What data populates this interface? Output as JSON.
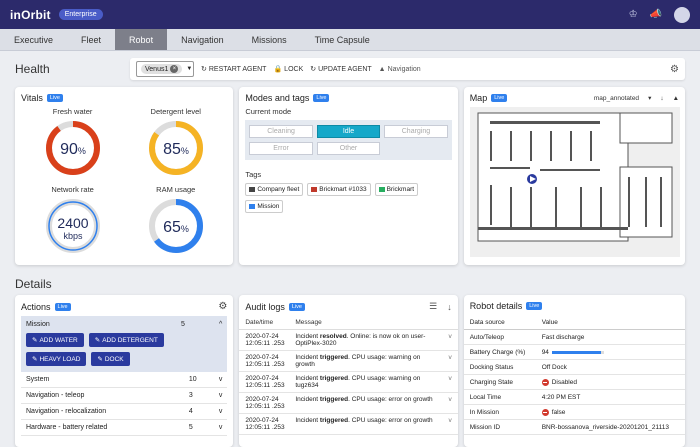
{
  "topbar": {
    "logo": "inOrbit",
    "badge": "Enterprise"
  },
  "tabs": [
    "Executive",
    "Fleet",
    "Robot",
    "Navigation",
    "Missions",
    "Time Capsule"
  ],
  "active_tab": "Robot",
  "health": {
    "title": "Health",
    "agent_chip": "Venus1",
    "restart": "RESTART AGENT",
    "lock": "LOCK",
    "update": "UPDATE AGENT",
    "navigation": "Navigation"
  },
  "live_label": "Live",
  "vitals": {
    "title": "Vitals",
    "gauges": [
      {
        "label": "Fresh water",
        "value": "90",
        "unit": "%",
        "fraction": 0.9,
        "color": "#d9401a"
      },
      {
        "label": "Detergent level",
        "value": "85",
        "unit": "%",
        "fraction": 0.85,
        "color": "#f5b324"
      },
      {
        "label": "Network rate",
        "value": "2400",
        "unit": "kbps",
        "fraction": 1.0,
        "color": "#2f80ed"
      },
      {
        "label": "RAM usage",
        "value": "65",
        "unit": "%",
        "fraction": 0.65,
        "color": "#2f80ed"
      }
    ]
  },
  "modes": {
    "title": "Modes and tags",
    "current_mode_label": "Current mode",
    "buttons": [
      "Cleaning",
      "Idle",
      "Charging",
      "Error",
      "Other"
    ],
    "active": "Idle",
    "tags_label": "Tags",
    "tags": [
      "Company fleet",
      "Brickmart #1033",
      "Brickmart",
      "Mission"
    ]
  },
  "map": {
    "title": "Map",
    "selected": "map_annotated"
  },
  "details_title": "Details",
  "actions": {
    "title": "Actions",
    "mission_label": "Mission",
    "mission_count": "5",
    "buttons": [
      "ADD WATER",
      "ADD DETERGENT",
      "HEAVY LOAD",
      "DOCK"
    ],
    "rows": [
      {
        "label": "System",
        "count": "10"
      },
      {
        "label": "Navigation - teleop",
        "count": "3"
      },
      {
        "label": "Navigation - relocalization",
        "count": "4"
      },
      {
        "label": "Hardware - battery related",
        "count": "5"
      }
    ]
  },
  "audit": {
    "title": "Audit logs",
    "col_datetime": "Date/time",
    "col_message": "Message",
    "rows": [
      {
        "date": "2020-07-24",
        "time": "12:05:11 .253",
        "pre": "Incident ",
        "bold": "resolved",
        "post": ". Online: is now ok on user-OptiPlex-3020"
      },
      {
        "date": "2020-07-24",
        "time": "12:05:11 .253",
        "pre": "Incident ",
        "bold": "triggered",
        "post": ". CPU usage: warning on growth"
      },
      {
        "date": "2020-07-24",
        "time": "12:05:11 .253",
        "pre": "Incident ",
        "bold": "triggered",
        "post": ". CPU usage: warning on tugz634"
      },
      {
        "date": "2020-07-24",
        "time": "12:05:11 .253",
        "pre": "Incident ",
        "bold": "triggered",
        "post": ". CPU usage: error on growth"
      },
      {
        "date": "2020-07-24",
        "time": "12:05:11 .253",
        "pre": "Incident ",
        "bold": "triggered",
        "post": ". CPU usage: error on growth"
      }
    ]
  },
  "robot": {
    "title": "Robot details",
    "col_source": "Data source",
    "col_value": "Value",
    "rows": [
      {
        "key": "Auto/Teleop",
        "value": "Fast discharge"
      },
      {
        "key": "Battery Charge (%)",
        "value": "94",
        "bar": 0.94
      },
      {
        "key": "Docking Status",
        "value": "Off Dock"
      },
      {
        "key": "Charging State",
        "value": "Disabled",
        "stop": true
      },
      {
        "key": "Local Time",
        "value": "4:20 PM EST"
      },
      {
        "key": "In Mission",
        "value": "false",
        "stop": true
      },
      {
        "key": "Mission ID",
        "value": "BNR-bossanova_riverside-20201201_21113"
      }
    ]
  }
}
